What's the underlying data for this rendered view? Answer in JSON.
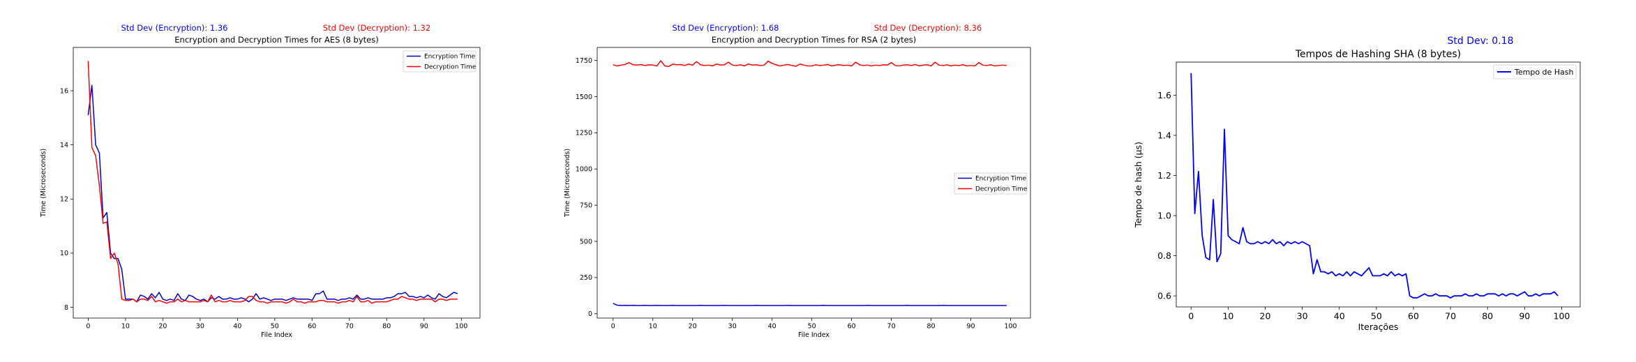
{
  "chart_data": [
    {
      "type": "line",
      "title": "Encryption and Decryption Times for AES (8 bytes)",
      "xlabel": "File Index",
      "ylabel": "Time (Microseconds)",
      "xlim": [
        -4,
        105
      ],
      "ylim": [
        7.6,
        17.6
      ],
      "xticks": [
        0,
        10,
        20,
        30,
        40,
        50,
        60,
        70,
        80,
        90,
        100
      ],
      "yticks": [
        8,
        10,
        12,
        14,
        16
      ],
      "legend": "top-right",
      "grid": false,
      "annotations": [
        {
          "text": "Std Dev (Encryption): 1.36",
          "color": "#0000ff"
        },
        {
          "text": "Std Dev (Decryption): 1.32",
          "color": "#ff0000"
        }
      ],
      "series": [
        {
          "name": "Encryption Time",
          "color": "#0000cc",
          "values": [
            15.1,
            16.2,
            14.0,
            13.7,
            11.3,
            11.5,
            10.0,
            9.8,
            9.8,
            9.4,
            8.3,
            8.3,
            8.3,
            8.2,
            8.45,
            8.4,
            8.3,
            8.5,
            8.35,
            8.55,
            8.3,
            8.25,
            8.3,
            8.25,
            8.5,
            8.3,
            8.25,
            8.45,
            8.4,
            8.3,
            8.25,
            8.3,
            8.2,
            8.35,
            8.3,
            8.4,
            8.3,
            8.3,
            8.35,
            8.3,
            8.3,
            8.35,
            8.3,
            8.2,
            8.3,
            8.5,
            8.3,
            8.35,
            8.3,
            8.25,
            8.3,
            8.3,
            8.3,
            8.25,
            8.3,
            8.35,
            8.3,
            8.3,
            8.3,
            8.3,
            8.25,
            8.5,
            8.5,
            8.6,
            8.3,
            8.3,
            8.3,
            8.25,
            8.3,
            8.3,
            8.35,
            8.3,
            8.45,
            8.3,
            8.3,
            8.35,
            8.3,
            8.3,
            8.3,
            8.3,
            8.35,
            8.35,
            8.4,
            8.5,
            8.5,
            8.55,
            8.4,
            8.4,
            8.35,
            8.4,
            8.35,
            8.45,
            8.35,
            8.3,
            8.5,
            8.4,
            8.35,
            8.45,
            8.55,
            8.5
          ]
        },
        {
          "name": "Decryption Time",
          "color": "#ff0000",
          "values": [
            17.1,
            13.9,
            13.6,
            12.5,
            11.1,
            11.15,
            9.8,
            10.0,
            9.6,
            8.3,
            8.25,
            8.25,
            8.3,
            8.2,
            8.3,
            8.3,
            8.25,
            8.4,
            8.2,
            8.25,
            8.2,
            8.15,
            8.2,
            8.2,
            8.3,
            8.2,
            8.25,
            8.2,
            8.2,
            8.2,
            8.2,
            8.25,
            8.2,
            8.45,
            8.2,
            8.25,
            8.2,
            8.2,
            8.25,
            8.2,
            8.2,
            8.2,
            8.25,
            8.4,
            8.4,
            8.25,
            8.2,
            8.2,
            8.15,
            8.2,
            8.2,
            8.2,
            8.2,
            8.15,
            8.2,
            8.3,
            8.2,
            8.2,
            8.15,
            8.2,
            8.2,
            8.2,
            8.25,
            8.25,
            8.2,
            8.2,
            8.2,
            8.15,
            8.2,
            8.2,
            8.25,
            8.2,
            8.4,
            8.2,
            8.2,
            8.25,
            8.15,
            8.2,
            8.2,
            8.2,
            8.2,
            8.25,
            8.3,
            8.3,
            8.4,
            8.35,
            8.3,
            8.3,
            8.25,
            8.3,
            8.3,
            8.3,
            8.3,
            8.2,
            8.3,
            8.3,
            8.25,
            8.3,
            8.3,
            8.3
          ]
        }
      ]
    },
    {
      "type": "line",
      "title": "Encryption and Decryption Times for RSA (2 bytes)",
      "xlabel": "File Index",
      "ylabel": "Time (Microseconds)",
      "xlim": [
        -4,
        105
      ],
      "ylim": [
        -30,
        1840
      ],
      "xticks": [
        0,
        10,
        20,
        30,
        40,
        50,
        60,
        70,
        80,
        90,
        100
      ],
      "yticks": [
        0,
        250,
        500,
        750,
        1000,
        1250,
        1500,
        1750
      ],
      "legend": "center-right",
      "grid": false,
      "annotations": [
        {
          "text": "Std Dev (Encryption): 1.68",
          "color": "#0000ff"
        },
        {
          "text": "Std Dev (Decryption): 8.36",
          "color": "#ff0000"
        }
      ],
      "series": [
        {
          "name": "Encryption Time",
          "color": "#0000cc",
          "values": [
            72,
            59,
            57,
            58,
            57,
            58,
            57,
            57,
            58,
            57,
            57,
            58,
            57,
            57,
            57,
            58,
            57,
            57,
            57,
            57,
            57,
            57,
            58,
            57,
            57,
            57,
            57,
            57,
            58,
            57,
            57,
            57,
            57,
            57,
            57,
            57,
            58,
            57,
            57,
            57,
            57,
            57,
            57,
            57,
            58,
            57,
            57,
            57,
            57,
            57,
            57,
            57,
            57,
            58,
            57,
            57,
            57,
            57,
            57,
            57,
            57,
            57,
            57,
            57,
            58,
            57,
            57,
            57,
            57,
            57,
            57,
            57,
            57,
            57,
            58,
            57,
            57,
            57,
            57,
            57,
            57,
            57,
            57,
            58,
            57,
            57,
            57,
            57,
            57,
            57,
            57,
            57,
            57,
            57,
            57,
            57,
            57,
            57,
            57,
            57
          ]
        },
        {
          "name": "Decryption Time",
          "color": "#ff0000",
          "values": [
            1720,
            1712,
            1718,
            1722,
            1735,
            1720,
            1718,
            1722,
            1715,
            1720,
            1718,
            1712,
            1748,
            1712,
            1708,
            1725,
            1720,
            1722,
            1715,
            1725,
            1718,
            1742,
            1720,
            1715,
            1718,
            1712,
            1725,
            1718,
            1720,
            1738,
            1718,
            1715,
            1720,
            1712,
            1725,
            1718,
            1720,
            1715,
            1718,
            1745,
            1730,
            1720,
            1712,
            1718,
            1722,
            1715,
            1710,
            1725,
            1718,
            1712,
            1712,
            1720,
            1715,
            1718,
            1722,
            1712,
            1718,
            1720,
            1715,
            1718,
            1712,
            1738,
            1720,
            1715,
            1718,
            1712,
            1718,
            1715,
            1720,
            1718,
            1735,
            1715,
            1712,
            1718,
            1720,
            1715,
            1722,
            1712,
            1718,
            1720,
            1712,
            1738,
            1718,
            1715,
            1720,
            1712,
            1718,
            1715,
            1720,
            1712,
            1715,
            1712,
            1735,
            1718,
            1715,
            1720,
            1712,
            1715,
            1718,
            1715
          ]
        }
      ]
    },
    {
      "type": "line",
      "title": "Tempos de Hashing SHA (8 bytes)",
      "xlabel": "Iterações",
      "ylabel": "Tempo de hash (µs)",
      "xlim": [
        -4,
        105
      ],
      "ylim": [
        0.545,
        1.765
      ],
      "xticks": [
        0,
        10,
        20,
        30,
        40,
        50,
        60,
        70,
        80,
        90,
        100
      ],
      "yticks": [
        0.6,
        0.8,
        1.0,
        1.2,
        1.4,
        1.6
      ],
      "legend": "top-right",
      "grid": false,
      "annotations": [
        {
          "text": "Std Dev: 0.18",
          "color": "#0000ff"
        }
      ],
      "series": [
        {
          "name": "Tempo de Hash",
          "color": "#0000ff",
          "values": [
            1.71,
            1.01,
            1.22,
            0.9,
            0.79,
            0.78,
            1.08,
            0.77,
            0.81,
            1.43,
            0.9,
            0.88,
            0.87,
            0.86,
            0.94,
            0.87,
            0.86,
            0.86,
            0.87,
            0.86,
            0.87,
            0.86,
            0.88,
            0.86,
            0.87,
            0.85,
            0.87,
            0.86,
            0.87,
            0.86,
            0.87,
            0.86,
            0.85,
            0.71,
            0.78,
            0.72,
            0.72,
            0.71,
            0.72,
            0.7,
            0.71,
            0.7,
            0.72,
            0.7,
            0.72,
            0.71,
            0.7,
            0.72,
            0.74,
            0.7,
            0.7,
            0.7,
            0.71,
            0.7,
            0.72,
            0.7,
            0.71,
            0.7,
            0.71,
            0.6,
            0.59,
            0.59,
            0.6,
            0.61,
            0.6,
            0.6,
            0.61,
            0.6,
            0.6,
            0.6,
            0.59,
            0.6,
            0.6,
            0.6,
            0.61,
            0.6,
            0.6,
            0.61,
            0.6,
            0.6,
            0.61,
            0.61,
            0.61,
            0.6,
            0.61,
            0.6,
            0.61,
            0.61,
            0.6,
            0.61,
            0.62,
            0.6,
            0.6,
            0.61,
            0.6,
            0.61,
            0.61,
            0.61,
            0.62,
            0.6
          ]
        }
      ]
    }
  ]
}
